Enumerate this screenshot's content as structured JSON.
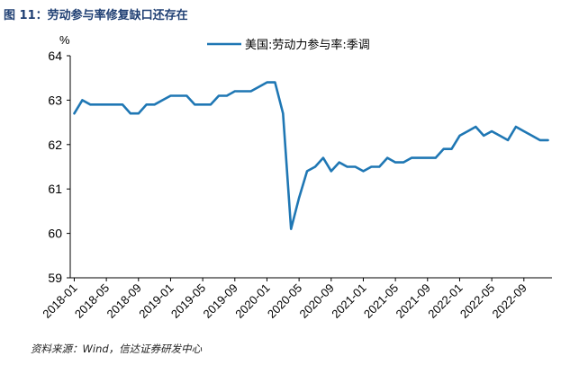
{
  "figure": {
    "title": "图 11：劳动参与率修复缺口还存在",
    "source": "资料来源：Wind，信达证券研发中心"
  },
  "chart_data": {
    "type": "line",
    "unit": "%",
    "ylim": [
      59,
      64
    ],
    "yticks": [
      "59",
      "60",
      "61",
      "62",
      "63",
      "64"
    ],
    "xticks": [
      "2018-01",
      "2018-05",
      "2018-09",
      "2019-01",
      "2019-05",
      "2019-09",
      "2020-01",
      "2020-05",
      "2020-09",
      "2021-01",
      "2021-05",
      "2021-09",
      "2022-01",
      "2022-05",
      "2022-09"
    ],
    "grid": false,
    "legend_position": "top-center",
    "series": [
      {
        "name": "美国:劳动力参与率:季调",
        "color": "#1f77b4",
        "x": [
          "2018-01",
          "2018-02",
          "2018-03",
          "2018-04",
          "2018-05",
          "2018-06",
          "2018-07",
          "2018-08",
          "2018-09",
          "2018-10",
          "2018-11",
          "2018-12",
          "2019-01",
          "2019-02",
          "2019-03",
          "2019-04",
          "2019-05",
          "2019-06",
          "2019-07",
          "2019-08",
          "2019-09",
          "2019-10",
          "2019-11",
          "2019-12",
          "2020-01",
          "2020-02",
          "2020-03",
          "2020-04",
          "2020-05",
          "2020-06",
          "2020-07",
          "2020-08",
          "2020-09",
          "2020-10",
          "2020-11",
          "2020-12",
          "2021-01",
          "2021-02",
          "2021-03",
          "2021-04",
          "2021-05",
          "2021-06",
          "2021-07",
          "2021-08",
          "2021-09",
          "2021-10",
          "2021-11",
          "2021-12",
          "2022-01",
          "2022-02",
          "2022-03",
          "2022-04",
          "2022-05",
          "2022-06",
          "2022-07",
          "2022-08",
          "2022-09",
          "2022-10",
          "2022-11",
          "2022-12"
        ],
        "values": [
          62.7,
          63.0,
          62.9,
          62.9,
          62.9,
          62.9,
          62.9,
          62.7,
          62.7,
          62.9,
          62.9,
          63.0,
          63.1,
          63.1,
          63.1,
          62.9,
          62.9,
          62.9,
          63.1,
          63.1,
          63.2,
          63.2,
          63.2,
          63.3,
          63.4,
          63.4,
          62.7,
          60.1,
          60.8,
          61.4,
          61.5,
          61.7,
          61.4,
          61.6,
          61.5,
          61.5,
          61.4,
          61.5,
          61.5,
          61.7,
          61.6,
          61.6,
          61.7,
          61.7,
          61.7,
          61.7,
          61.9,
          61.9,
          62.2,
          62.3,
          62.4,
          62.2,
          62.3,
          62.2,
          62.1,
          62.4,
          62.3,
          62.2,
          62.1,
          62.1
        ]
      }
    ]
  }
}
